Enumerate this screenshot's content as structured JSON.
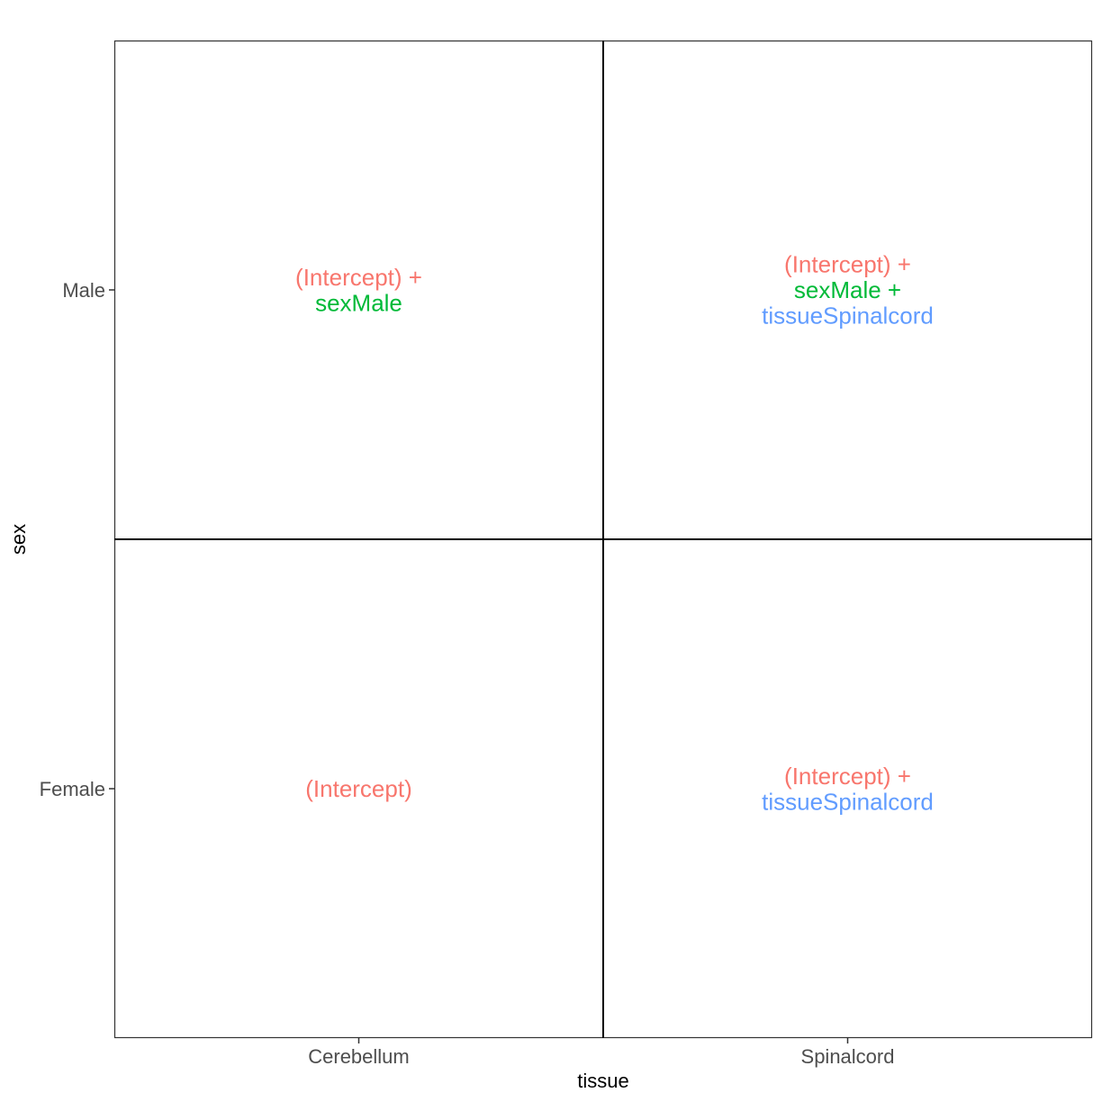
{
  "chart_data": {
    "type": "table",
    "title": "",
    "xlabel": "tissue",
    "ylabel": "sex",
    "x_categories": [
      "Cerebellum",
      "Spinalcord"
    ],
    "y_categories": [
      "Female",
      "Male"
    ],
    "grid": false,
    "legend": "none",
    "term_colors": {
      "(Intercept)": "#F8766D",
      "sexMale": "#00BA38",
      "tissueSpinalcord": "#619CFF"
    },
    "cells": [
      {
        "tissue": "Cerebellum",
        "sex": "Male",
        "lines": [
          {
            "text": "(Intercept) +",
            "color": "#F8766D"
          },
          {
            "text": "sexMale",
            "color": "#00BA38"
          }
        ]
      },
      {
        "tissue": "Spinalcord",
        "sex": "Male",
        "lines": [
          {
            "text": "(Intercept) +",
            "color": "#F8766D"
          },
          {
            "text": "sexMale +",
            "color": "#00BA38"
          },
          {
            "text": "tissueSpinalcord",
            "color": "#619CFF"
          }
        ]
      },
      {
        "tissue": "Cerebellum",
        "sex": "Female",
        "lines": [
          {
            "text": "(Intercept)",
            "color": "#F8766D"
          }
        ]
      },
      {
        "tissue": "Spinalcord",
        "sex": "Female",
        "lines": [
          {
            "text": "(Intercept) +",
            "color": "#F8766D"
          },
          {
            "text": "tissueSpinalcord",
            "color": "#619CFF"
          }
        ]
      }
    ]
  }
}
